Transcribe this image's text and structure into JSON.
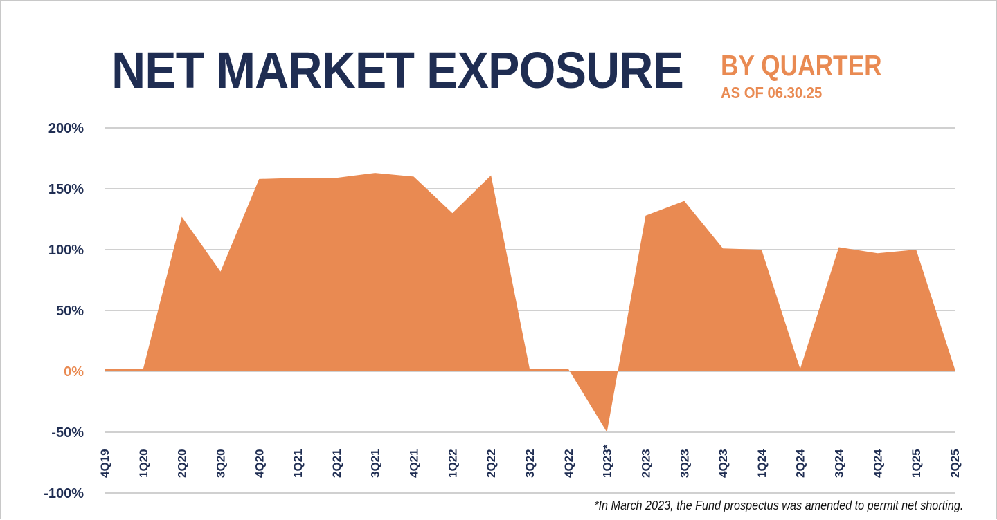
{
  "title": {
    "main": "NET MARKET EXPOSURE",
    "sub": "BY QUARTER",
    "date": "AS OF 06.30.25"
  },
  "footnote": "*In March 2023, the Fund prospectus was amended to permit net shorting.",
  "colors": {
    "navy": "#1f2d52",
    "orange": "#e98a52",
    "grid": "#d0d0d0"
  },
  "chart_data": {
    "type": "area",
    "categories": [
      "4Q19",
      "1Q20",
      "2Q20",
      "3Q20",
      "4Q20",
      "1Q21",
      "2Q21",
      "3Q21",
      "4Q21",
      "1Q22",
      "2Q22",
      "3Q22",
      "4Q22",
      "1Q23*",
      "2Q23",
      "3Q23",
      "4Q23",
      "1Q24",
      "2Q24",
      "3Q24",
      "4Q24",
      "1Q25",
      "2Q25"
    ],
    "series": [
      {
        "values": [
          2,
          2,
          127,
          82,
          158,
          159,
          159,
          163,
          160,
          130,
          161,
          2,
          2,
          -50,
          128,
          140,
          101,
          100,
          2,
          102,
          97,
          100,
          2
        ]
      }
    ],
    "yticks": [
      "200%",
      "150%",
      "100%",
      "50%",
      "0%",
      "-50%",
      "-100%"
    ],
    "ytick_values": [
      200,
      150,
      100,
      50,
      0,
      -50,
      -100
    ],
    "ylim": [
      -100,
      200
    ],
    "grid": true,
    "zero_label_color": "#e98a52"
  }
}
